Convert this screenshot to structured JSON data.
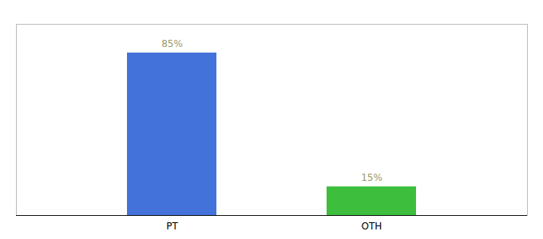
{
  "chart_data": {
    "type": "bar",
    "categories": [
      "PT",
      "OTH"
    ],
    "values": [
      85,
      15
    ],
    "value_labels": [
      "85%",
      "15%"
    ],
    "colors": [
      "#4472db",
      "#3dbf3d"
    ],
    "ylim": [
      0,
      100
    ],
    "tick_labels": "x",
    "data_labels": true
  }
}
